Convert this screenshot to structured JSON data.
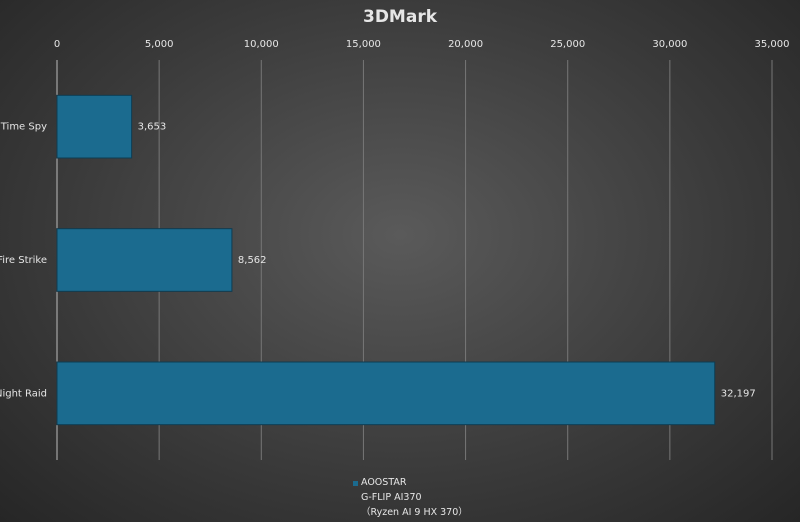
{
  "chart_data": {
    "type": "bar",
    "orientation": "horizontal",
    "title": "3DMark",
    "categories": [
      "Time Spy",
      "Fire Strike",
      "Night Raid"
    ],
    "series": [
      {
        "name": "AOOSTAR\nG-FLIP  AI370\n（Ryzen AI 9 HX 370）",
        "color": "#1b6b8f",
        "values": [
          3653,
          8562,
          32197
        ],
        "value_labels": [
          "3,653",
          "8,562",
          "32,197"
        ]
      }
    ],
    "xlim": [
      0,
      35000
    ],
    "xticks": [
      0,
      {
        "value": 5000,
        "label": "5,000"
      },
      {
        "value": 10000,
        "label": "10,000"
      },
      {
        "value": 15000,
        "label": "15,000"
      },
      {
        "value": 20000,
        "label": "20,000"
      },
      {
        "value": 25000,
        "label": "25,000"
      },
      {
        "value": 30000,
        "label": "30,000"
      },
      {
        "value": 35000,
        "label": "35,000"
      }
    ],
    "grid": true,
    "legend": "bottom"
  }
}
